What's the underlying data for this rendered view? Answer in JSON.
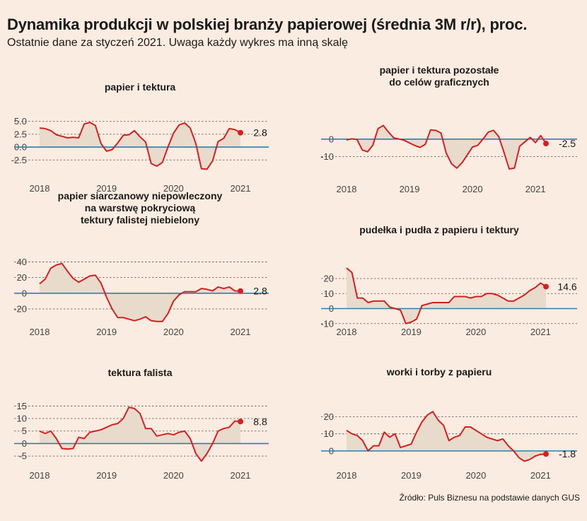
{
  "header": {
    "title": "Dynamika produkcji w polskiej branży papierowej (średnia 3M r/r), proc.",
    "subtitle": "Ostatnie dane za styczeń 2021. Uwaga każdy wykres ma inną skalę"
  },
  "footer": {
    "source": "Źródło: Puls Biznesu na podstawie danych GUS"
  },
  "colors": {
    "background": "#faece1",
    "line": "#d71f1f",
    "area": "#e8dbcc",
    "zero_line": "#2f7fa6",
    "grid": "#555555",
    "text": "#1a1a1a",
    "tick_text": "#444444"
  },
  "chart_data": [
    {
      "type": "area",
      "title": "papier i tektura",
      "x_start": "2018-01",
      "frequency": "monthly",
      "x_ticks": [
        "2018",
        "2019",
        "2020",
        "2021"
      ],
      "y_ticks": [
        5.0,
        2.5,
        0.0,
        -2.5
      ],
      "y_tick_labels": [
        "5.0",
        "2.5",
        "0.0",
        "-2.5"
      ],
      "ylim": [
        -4.8,
        6.2
      ],
      "values": [
        3.7,
        3.6,
        3.2,
        2.4,
        2.1,
        1.8,
        1.9,
        1.8,
        4.5,
        4.8,
        4.2,
        0.7,
        -0.8,
        -0.5,
        0.8,
        2.3,
        2.4,
        3.2,
        2.0,
        1.0,
        -3.2,
        -3.7,
        -3.0,
        0.0,
        2.7,
        4.3,
        4.7,
        3.7,
        0.7,
        -4.2,
        -4.3,
        -2.7,
        1.1,
        1.7,
        3.6,
        3.4,
        2.8
      ],
      "last_label": "2.8",
      "grid": true
    },
    {
      "type": "area",
      "title": "papier i tektura pozostałe\ndo celów graficznych",
      "x_start": "2018-01",
      "frequency": "monthly",
      "x_ticks": [
        "2018",
        "2019",
        "2020",
        "2021"
      ],
      "y_ticks": [
        0,
        -10
      ],
      "y_tick_labels": [
        "0",
        "-10"
      ],
      "ylim": [
        -19,
        10
      ],
      "values": [
        -0.5,
        0.2,
        -0.2,
        -6.2,
        -7.2,
        -3.5,
        6.0,
        7.8,
        4.0,
        0.7,
        0.1,
        -0.7,
        -2.2,
        -3.6,
        -4.7,
        -3.0,
        5.2,
        5.0,
        3.5,
        -8.0,
        -14.0,
        -16.5,
        -13.5,
        -9.0,
        -4.5,
        -3.5,
        0.0,
        4.0,
        5.0,
        1.5,
        -7.5,
        -17.0,
        -16.5,
        -4.0,
        -1.5,
        1.0,
        -2.0,
        2.0,
        -2.5
      ],
      "last_label": "-2.5",
      "grid": true
    },
    {
      "type": "area",
      "title": "papier siarczanowy niepowleczony\nna warstwę pokryciową\ntektury falistej niebielony",
      "x_start": "2018-01",
      "frequency": "monthly",
      "x_ticks": [
        "2018",
        "2019",
        "2020",
        "2021"
      ],
      "y_ticks": [
        40,
        20,
        0,
        -20
      ],
      "y_tick_labels": [
        "40",
        "20",
        "0",
        "-20"
      ],
      "ylim": [
        -38,
        44
      ],
      "values": [
        12,
        18,
        32,
        36,
        38,
        28,
        19,
        14,
        18,
        22,
        23,
        13,
        -5,
        -20,
        -31,
        -31,
        -33,
        -35,
        -33,
        -30,
        -35,
        -36,
        -36,
        -26,
        -10,
        -2,
        2,
        2,
        2,
        6,
        5,
        3,
        8,
        6,
        8,
        3,
        2.8
      ],
      "last_label": "2.8",
      "grid": true
    },
    {
      "type": "area",
      "title": "pudełka i pudła z papieru i tektury",
      "x_start": "2018-01",
      "frequency": "monthly",
      "x_ticks": [
        "2018",
        "2019",
        "2020",
        "2021"
      ],
      "y_ticks": [
        20,
        10,
        0,
        -10
      ],
      "y_tick_labels": [
        "20",
        "10",
        "0",
        "-10"
      ],
      "ylim": [
        -12,
        28
      ],
      "values": [
        27,
        24,
        7,
        7,
        4,
        5,
        5,
        5,
        1,
        0,
        -1,
        -10,
        -9,
        -7,
        2,
        3,
        4,
        4,
        4,
        4,
        8,
        8,
        8,
        7,
        8,
        8,
        10,
        10,
        9,
        7,
        5,
        5,
        7,
        9,
        12,
        14,
        17,
        14.6
      ],
      "last_label": "14.6",
      "grid": true
    },
    {
      "type": "area",
      "title": "tektura falista",
      "x_start": "2018-01",
      "frequency": "monthly",
      "x_ticks": [
        "2018",
        "2019",
        "2020",
        "2021"
      ],
      "y_ticks": [
        15,
        10,
        5,
        0,
        -5
      ],
      "y_tick_labels": [
        "15",
        "10",
        "5",
        "0",
        "-5"
      ],
      "ylim": [
        -7.5,
        16.5
      ],
      "values": [
        5,
        4,
        5,
        2,
        -2,
        -2.2,
        -2,
        2.5,
        2,
        4.5,
        5,
        5.5,
        6.5,
        7.5,
        8,
        10,
        14.5,
        14,
        12,
        6,
        6,
        3,
        3.5,
        4,
        3.5,
        4.5,
        5,
        2,
        -4,
        -7,
        -4,
        0,
        5,
        6,
        6.5,
        9,
        8.8
      ],
      "last_label": "8.8",
      "grid": true
    },
    {
      "type": "area",
      "title": "worki i torby z papieru",
      "x_start": "2018-01",
      "frequency": "monthly",
      "x_ticks": [
        "2018",
        "2019",
        "2020",
        "2021"
      ],
      "y_ticks": [
        20,
        10,
        0
      ],
      "y_tick_labels": [
        "20",
        "10",
        "0"
      ],
      "ylim": [
        -7.5,
        26
      ],
      "values": [
        12,
        10,
        9,
        6,
        0,
        3,
        3,
        11,
        8,
        10,
        2,
        3,
        4,
        11,
        17,
        21,
        23,
        18,
        15,
        6,
        8,
        9,
        14,
        14,
        12,
        10,
        8,
        7,
        6,
        7,
        3,
        0,
        -4,
        -6,
        -5,
        -3,
        -2,
        -1.8
      ],
      "last_label": "-1.8",
      "grid": true
    }
  ]
}
